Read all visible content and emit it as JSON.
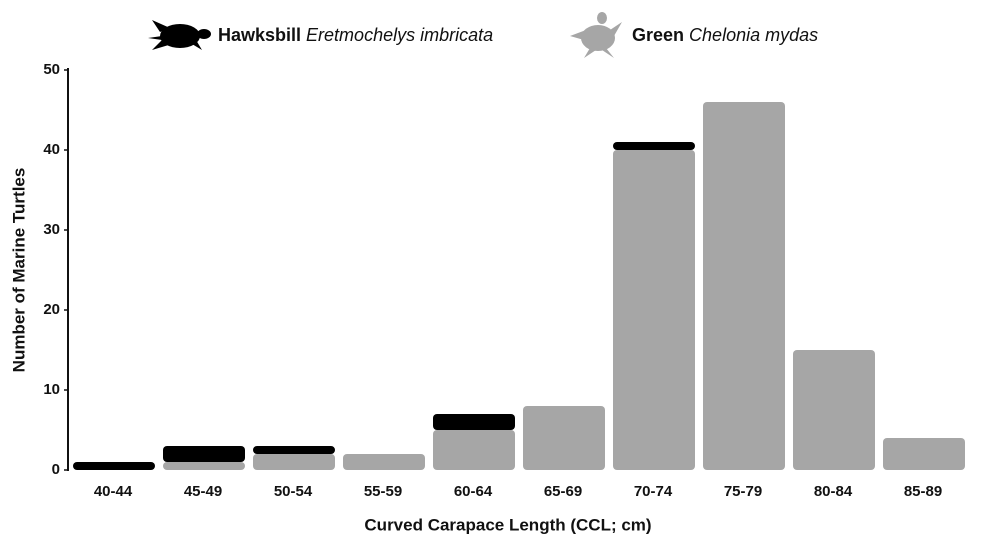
{
  "chart_data": {
    "type": "stacked_bar",
    "x_label": "Curved Carapace Length (CCL; cm)",
    "y_label": "Number of Marine Turtles",
    "categories": [
      "40-44",
      "45-49",
      "50-54",
      "55-59",
      "60-64",
      "65-69",
      "70-74",
      "75-79",
      "80-84",
      "85-89"
    ],
    "series": [
      {
        "name": "Green",
        "scientific_name": "Chelonia mydas",
        "color": "#a6a6a6",
        "values": [
          0,
          1,
          2,
          2,
          5,
          8,
          40,
          46,
          15,
          4
        ]
      },
      {
        "name": "Hawksbill",
        "scientific_name": "Eretmochelys imbricata",
        "color": "#000000",
        "values": [
          1,
          2,
          1,
          0,
          2,
          0,
          1,
          0,
          0,
          0
        ]
      }
    ],
    "ylim": [
      0,
      50
    ],
    "yticks": [
      0,
      10,
      20,
      30,
      40,
      50
    ]
  }
}
